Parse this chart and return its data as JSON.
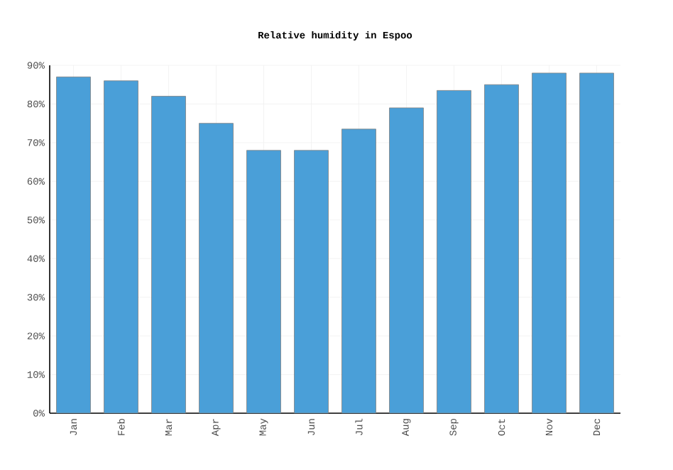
{
  "chart_data": {
    "type": "bar",
    "title": "Relative humidity in Espoo",
    "categories": [
      "Jan",
      "Feb",
      "Mar",
      "Apr",
      "May",
      "Jun",
      "Jul",
      "Aug",
      "Sep",
      "Oct",
      "Nov",
      "Dec"
    ],
    "values": [
      87,
      86,
      82,
      75,
      68,
      68,
      73.5,
      79,
      83.5,
      85,
      88,
      88
    ],
    "color": "#4a9fd8",
    "ylim": [
      0,
      90
    ],
    "yticks": [
      {
        "value": 0,
        "label": "0%"
      },
      {
        "value": 10,
        "label": "10%"
      },
      {
        "value": 20,
        "label": "20%"
      },
      {
        "value": 30,
        "label": "30%"
      },
      {
        "value": 40,
        "label": "40%"
      },
      {
        "value": 50,
        "label": "50%"
      },
      {
        "value": 60,
        "label": "60%"
      },
      {
        "value": 70,
        "label": "70%"
      },
      {
        "value": 80,
        "label": "80%"
      },
      {
        "value": 90,
        "label": "90%"
      }
    ],
    "grid": true
  }
}
